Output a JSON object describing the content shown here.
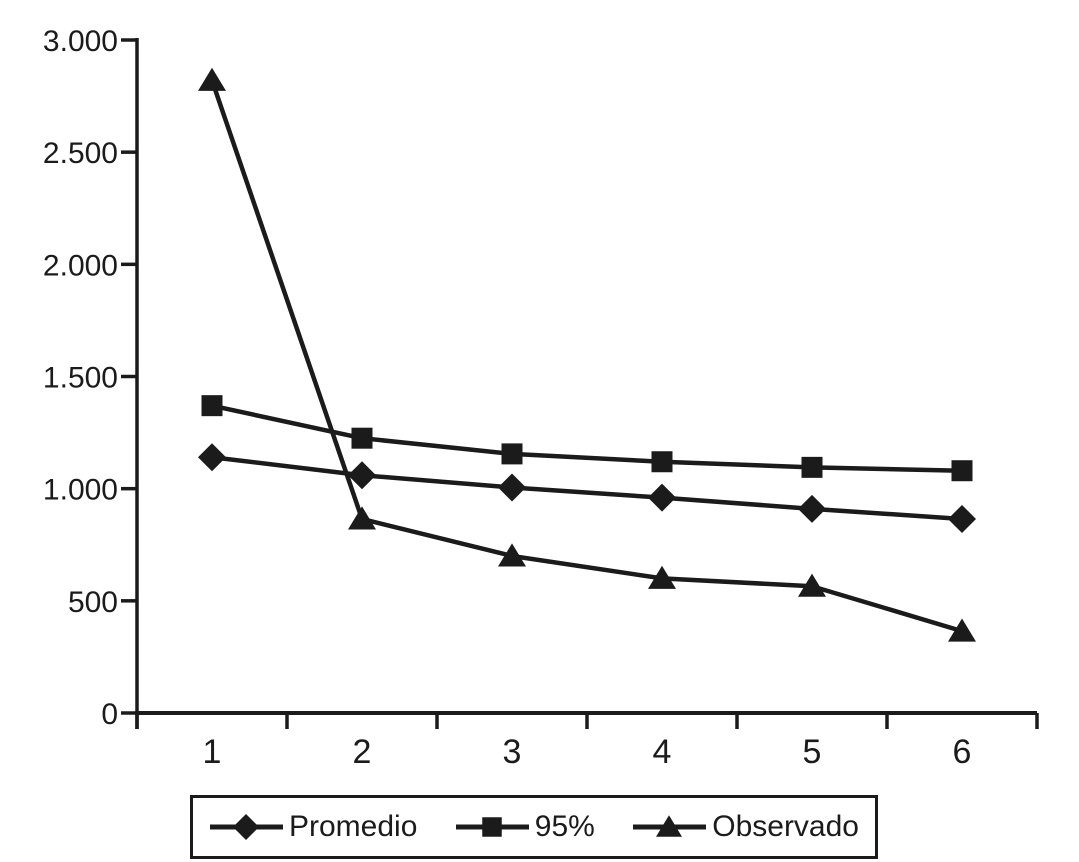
{
  "chart_data": {
    "type": "line",
    "title": "",
    "xlabel": "",
    "ylabel": "",
    "x_categories": [
      "1",
      "2",
      "3",
      "4",
      "5",
      "6"
    ],
    "ylim": [
      0,
      3000
    ],
    "ytick_interval": 500,
    "ytick_labels": [
      "0",
      "500",
      "1.000",
      "1.500",
      "2.000",
      "2.500",
      "3.000"
    ],
    "grid": false,
    "legend_position": "bottom",
    "series_color": "#1b1b1b",
    "background_color": "#ffffff",
    "series": [
      {
        "name": "Promedio",
        "marker": "diamond",
        "values": [
          1140,
          1060,
          1005,
          960,
          910,
          865
        ]
      },
      {
        "name": "95%",
        "marker": "square",
        "values": [
          1370,
          1225,
          1155,
          1120,
          1095,
          1080
        ]
      },
      {
        "name": "Observado",
        "marker": "triangle",
        "values": [
          2820,
          865,
          700,
          600,
          565,
          365
        ]
      }
    ]
  }
}
